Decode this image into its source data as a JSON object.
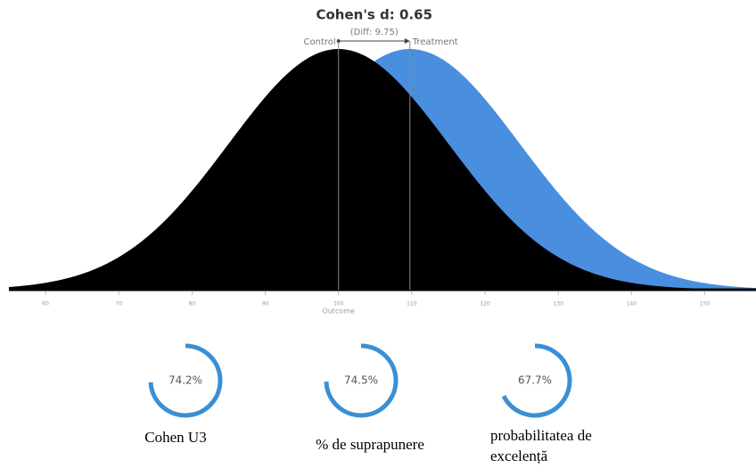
{
  "chart_data": [
    {
      "type": "density",
      "title": "Cohen's d: 0.65",
      "annotation": "(Diff: 9.75)",
      "xlabel": "Outcome",
      "xlim": [
        55,
        157
      ],
      "xticks": [
        60,
        70,
        80,
        90,
        100,
        110,
        120,
        130,
        140,
        150
      ],
      "series": [
        {
          "name": "Control",
          "color": "#000000",
          "mean": 100,
          "sd": 15
        },
        {
          "name": "Treatment",
          "color": "#4a8ee0",
          "mean": 109.75,
          "sd": 15
        }
      ]
    },
    {
      "type": "gauge",
      "title": "Cohen U3",
      "values": [
        74.2
      ],
      "value_labels": [
        "74.2%"
      ],
      "ylim": [
        0,
        100
      ],
      "color": "#3a8fd6"
    },
    {
      "type": "gauge",
      "title": "% de suprapunere",
      "values": [
        74.5
      ],
      "value_labels": [
        "74.5%"
      ],
      "ylim": [
        0,
        100
      ],
      "color": "#3a8fd6"
    },
    {
      "type": "gauge",
      "title": "probabilitatea de excelență",
      "values": [
        67.7
      ],
      "value_labels": [
        "67.7%"
      ],
      "ylim": [
        0,
        100
      ],
      "color": "#3a8fd6"
    }
  ]
}
